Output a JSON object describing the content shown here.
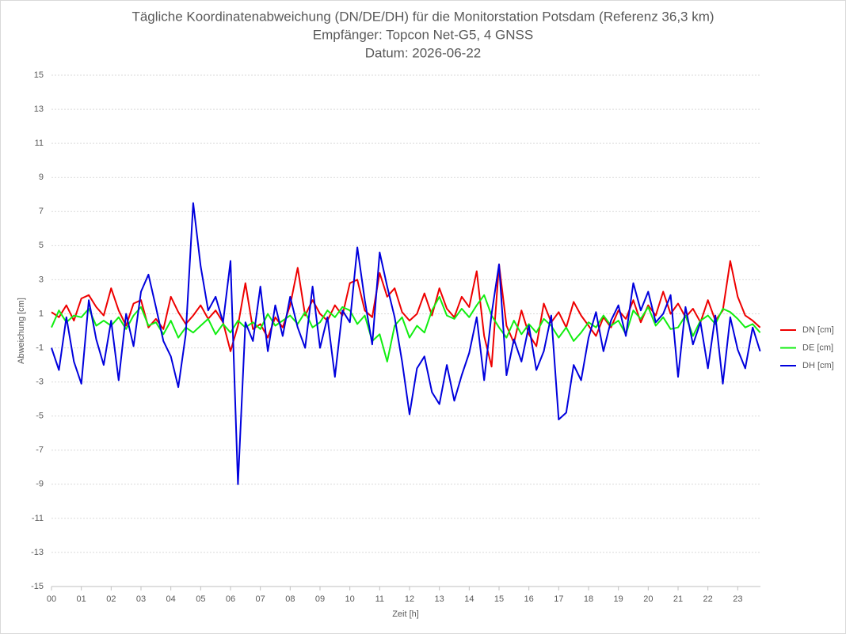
{
  "chart_data": {
    "type": "line",
    "title": "Tägliche Koordinatenabweichung (DN/DE/DH) für die Monitorstation Potsdam (Referenz 36,3 km)",
    "subtitle": "Empfänger: Topcon Net-G5, 4 GNSS",
    "date": "Datum: 2026-06-22",
    "x_label": "Zeit [h]",
    "y_label": "Abweichung [cm]",
    "xlim": [
      0,
      24
    ],
    "xticks": [
      {
        "value": 0,
        "label": "00"
      },
      {
        "value": 1,
        "label": "01"
      },
      {
        "value": 2,
        "label": "02"
      },
      {
        "value": 3,
        "label": "03"
      },
      {
        "value": 4,
        "label": "04"
      },
      {
        "value": 5,
        "label": "05"
      },
      {
        "value": 6,
        "label": "06"
      },
      {
        "value": 7,
        "label": "07"
      },
      {
        "value": 8,
        "label": "08"
      },
      {
        "value": 9,
        "label": "09"
      },
      10,
      11,
      12,
      13,
      14,
      15,
      16,
      17,
      18,
      19,
      20,
      21,
      22,
      23
    ],
    "ylim": [
      -15,
      15
    ],
    "yticks": [
      -15,
      -13,
      -11,
      -9,
      -7,
      -5,
      -3,
      -1,
      1,
      3,
      5,
      7,
      9,
      11,
      13,
      15
    ],
    "grid": true,
    "legend": "right",
    "x": [
      0,
      0.25,
      0.5,
      0.75,
      1,
      1.25,
      1.5,
      1.75,
      2,
      2.25,
      2.5,
      2.75,
      3,
      3.25,
      3.5,
      3.75,
      4,
      4.25,
      4.5,
      4.75,
      5,
      5.25,
      5.5,
      5.75,
      6,
      6.25,
      6.5,
      6.75,
      7,
      7.25,
      7.5,
      7.75,
      8,
      8.25,
      8.5,
      8.75,
      9,
      9.25,
      9.5,
      9.75,
      10,
      10.25,
      10.5,
      10.75,
      11,
      11.25,
      11.5,
      11.75,
      12,
      12.25,
      12.5,
      12.75,
      13,
      13.25,
      13.5,
      13.75,
      14,
      14.25,
      14.5,
      14.75,
      15,
      15.25,
      15.5,
      15.75,
      16,
      16.25,
      16.5,
      16.75,
      17,
      17.25,
      17.5,
      17.75,
      18,
      18.25,
      18.5,
      18.75,
      19,
      19.25,
      19.5,
      19.75,
      20,
      20.25,
      20.5,
      20.75,
      21,
      21.25,
      21.5,
      21.75,
      22,
      22.25,
      22.5,
      22.75,
      23,
      23.25,
      23.5,
      23.75
    ],
    "series": [
      {
        "name": "DN [cm]",
        "color": "#ee0000",
        "values": [
          1.1,
          0.8,
          1.5,
          0.6,
          1.9,
          2.1,
          1.4,
          0.9,
          2.5,
          1.2,
          0.3,
          1.6,
          1.8,
          0.2,
          0.7,
          0.1,
          2.0,
          1.1,
          0.4,
          0.9,
          1.5,
          0.7,
          1.2,
          0.5,
          -1.2,
          0.3,
          2.8,
          0.1,
          0.4,
          -0.4,
          0.8,
          0.2,
          1.5,
          3.7,
          0.9,
          1.8,
          1.0,
          0.6,
          1.5,
          0.9,
          2.8,
          3.0,
          1.2,
          0.8,
          3.4,
          2.0,
          2.5,
          1.1,
          0.6,
          1.0,
          2.2,
          0.9,
          2.5,
          1.3,
          0.8,
          2.0,
          1.4,
          3.5,
          -0.3,
          -2.1,
          3.9,
          0.3,
          -0.7,
          1.2,
          -0.2,
          -0.9,
          1.6,
          0.5,
          1.1,
          0.2,
          1.7,
          0.9,
          0.3,
          -0.3,
          0.8,
          0.2,
          1.2,
          0.7,
          1.8,
          0.5,
          1.5,
          0.9,
          2.3,
          1.0,
          1.6,
          0.8,
          1.3,
          0.5,
          1.8,
          0.6,
          1.2,
          4.1,
          2.0,
          0.9,
          0.6,
          0.2
        ]
      },
      {
        "name": "DE [cm]",
        "color": "#11ee11",
        "values": [
          0.2,
          1.2,
          0.5,
          0.9,
          0.8,
          1.3,
          0.3,
          0.6,
          0.3,
          0.8,
          0.1,
          0.9,
          1.4,
          0.3,
          0.5,
          -0.2,
          0.6,
          -0.4,
          0.2,
          -0.1,
          0.3,
          0.7,
          -0.2,
          0.4,
          -0.1,
          0.6,
          0.2,
          0.5,
          0.1,
          1.0,
          0.3,
          0.6,
          0.9,
          0.4,
          1.1,
          0.2,
          0.5,
          1.2,
          0.8,
          1.4,
          1.2,
          0.4,
          0.9,
          -0.6,
          -0.2,
          -1.8,
          0.3,
          0.8,
          -0.4,
          0.3,
          -0.1,
          1.2,
          2.0,
          0.9,
          0.7,
          1.3,
          0.8,
          1.5,
          2.1,
          0.9,
          0.2,
          -0.4,
          0.6,
          -0.2,
          0.4,
          -0.1,
          0.7,
          0.3,
          -0.4,
          0.2,
          -0.6,
          -0.1,
          0.5,
          0.2,
          0.9,
          0.3,
          0.6,
          -0.2,
          1.2,
          0.7,
          1.4,
          0.3,
          0.8,
          0.1,
          0.2,
          0.9,
          -0.3,
          0.6,
          0.9,
          0.4,
          1.3,
          1.1,
          0.7,
          0.2,
          0.4,
          -0.1
        ]
      },
      {
        "name": "DH [cm]",
        "color": "#0000dd",
        "values": [
          -1.0,
          -2.3,
          0.8,
          -1.8,
          -3.1,
          1.8,
          -0.5,
          -2.0,
          0.6,
          -2.9,
          1.0,
          -0.9,
          2.3,
          3.3,
          1.4,
          -0.6,
          -1.5,
          -3.3,
          -0.2,
          7.5,
          3.8,
          1.2,
          2.0,
          0.5,
          4.1,
          -9.0,
          0.5,
          -0.6,
          2.6,
          -1.2,
          1.5,
          -0.3,
          2.0,
          0.2,
          -1.0,
          2.6,
          -1.0,
          0.8,
          -2.7,
          1.2,
          0.5,
          4.9,
          1.8,
          -0.8,
          4.6,
          2.6,
          0.8,
          -1.8,
          -4.9,
          -2.2,
          -1.5,
          -3.6,
          -4.3,
          -2.0,
          -4.1,
          -2.6,
          -1.3,
          0.8,
          -2.9,
          1.0,
          3.9,
          -2.6,
          -0.5,
          -1.8,
          0.3,
          -2.3,
          -1.2,
          0.9,
          -5.2,
          -4.8,
          -2.0,
          -2.9,
          -0.4,
          1.1,
          -1.2,
          0.6,
          1.5,
          -0.3,
          2.8,
          1.2,
          2.3,
          0.5,
          1.0,
          2.1,
          -2.7,
          1.4,
          -0.8,
          0.5,
          -2.2,
          0.9,
          -3.1,
          0.8,
          -1.1,
          -2.2,
          0.2,
          -1.2
        ]
      }
    ]
  }
}
